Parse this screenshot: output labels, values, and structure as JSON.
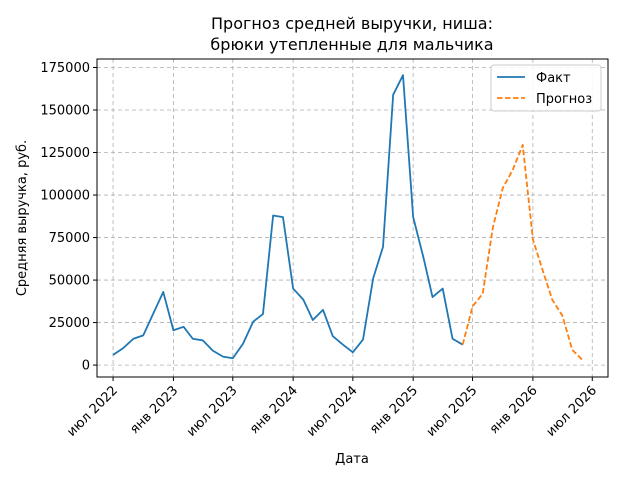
{
  "chart_data": {
    "type": "line",
    "title": [
      "Прогноз средней выручки, ниша:",
      "брюки утепленные для мальчика"
    ],
    "xlabel": "Дата",
    "ylabel": "Средняя выручка, руб.",
    "x_ticks": [
      {
        "date": "2022-07-01",
        "label": "июл 2022"
      },
      {
        "date": "2023-01-01",
        "label": "янв 2023"
      },
      {
        "date": "2023-07-01",
        "label": "июл 2023"
      },
      {
        "date": "2024-01-01",
        "label": "янв 2024"
      },
      {
        "date": "2024-07-01",
        "label": "июл 2024"
      },
      {
        "date": "2025-01-01",
        "label": "янв 2025"
      },
      {
        "date": "2025-07-01",
        "label": "июл 2025"
      },
      {
        "date": "2026-01-01",
        "label": "янв 2026"
      },
      {
        "date": "2026-07-01",
        "label": "июл 2026"
      }
    ],
    "y_ticks": [
      0,
      25000,
      50000,
      75000,
      100000,
      125000,
      150000,
      175000
    ],
    "y_tick_labels": [
      "0",
      "25000",
      "50000",
      "75000",
      "100000",
      "125000",
      "150000",
      "175000"
    ],
    "xlim": [
      "2022-05-13",
      "2026-08-18"
    ],
    "ylim": [
      -7000,
      180000
    ],
    "grid": true,
    "legend": "top-right",
    "series": [
      {
        "name": "Факт",
        "style": "solid",
        "color": "#1f77b4",
        "points": [
          [
            "2022-07-01",
            6000
          ],
          [
            "2022-08-01",
            10000
          ],
          [
            "2022-09-01",
            15500
          ],
          [
            "2022-10-01",
            17500
          ],
          [
            "2022-11-01",
            30500
          ],
          [
            "2022-12-01",
            43000
          ],
          [
            "2023-01-01",
            20500
          ],
          [
            "2023-02-01",
            22500
          ],
          [
            "2023-03-01",
            15500
          ],
          [
            "2023-04-01",
            14500
          ],
          [
            "2023-05-01",
            8500
          ],
          [
            "2023-06-01",
            5000
          ],
          [
            "2023-07-01",
            4000
          ],
          [
            "2023-08-01",
            12500
          ],
          [
            "2023-09-01",
            25500
          ],
          [
            "2023-10-01",
            30000
          ],
          [
            "2023-11-01",
            88000
          ],
          [
            "2023-12-01",
            87000
          ],
          [
            "2024-01-01",
            45000
          ],
          [
            "2024-02-01",
            38500
          ],
          [
            "2024-03-01",
            26500
          ],
          [
            "2024-04-01",
            32500
          ],
          [
            "2024-05-01",
            17000
          ],
          [
            "2024-06-01",
            12000
          ],
          [
            "2024-07-01",
            7500
          ],
          [
            "2024-08-01",
            15000
          ],
          [
            "2024-09-01",
            51000
          ],
          [
            "2024-10-01",
            69500
          ],
          [
            "2024-11-01",
            159000
          ],
          [
            "2024-12-01",
            170500
          ],
          [
            "2025-01-01",
            87000
          ],
          [
            "2025-02-01",
            63500
          ],
          [
            "2025-03-01",
            40000
          ],
          [
            "2025-04-01",
            45000
          ],
          [
            "2025-05-01",
            15500
          ],
          [
            "2025-06-01",
            12000
          ]
        ]
      },
      {
        "name": "Прогноз",
        "style": "dashed",
        "color": "#ff7f0e",
        "points": [
          [
            "2025-06-01",
            12000
          ],
          [
            "2025-07-01",
            34500
          ],
          [
            "2025-08-01",
            42000
          ],
          [
            "2025-09-01",
            81000
          ],
          [
            "2025-10-01",
            104000
          ],
          [
            "2025-11-01",
            115000
          ],
          [
            "2025-12-01",
            129500
          ],
          [
            "2026-01-01",
            74000
          ],
          [
            "2026-02-01",
            55000
          ],
          [
            "2026-03-01",
            38500
          ],
          [
            "2026-04-01",
            29000
          ],
          [
            "2026-05-01",
            9000
          ],
          [
            "2026-06-01",
            3000
          ]
        ]
      }
    ]
  }
}
